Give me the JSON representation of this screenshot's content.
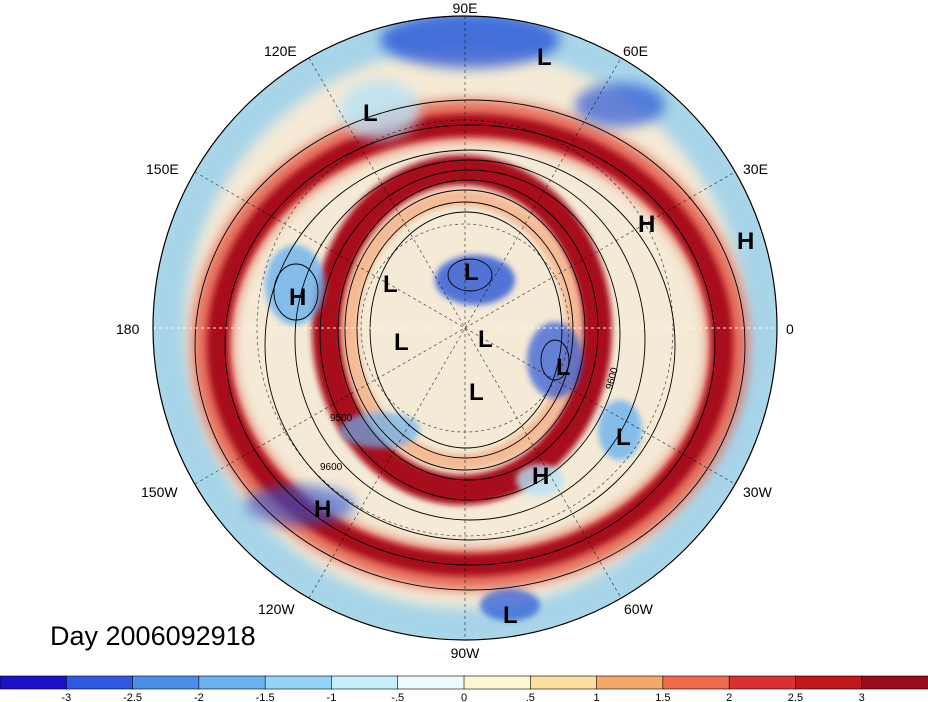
{
  "title": "Day 2006092918",
  "lon_labels": {
    "e90": "90E",
    "e60": "60E",
    "e120": "120E",
    "e150": "150E",
    "e30": "30E",
    "zero": "0",
    "w180": "180",
    "w150": "150W",
    "w30": "30W",
    "w120": "120W",
    "w60": "60W",
    "w90": "90W"
  },
  "pressure_labels": [
    "L",
    "L",
    "L",
    "L",
    "L",
    "L",
    "L",
    "L",
    "L",
    "L",
    "H",
    "H",
    "H",
    "H",
    "H"
  ],
  "contour_labels": [
    "9500",
    "9600",
    "9600"
  ],
  "colorbar": {
    "ticks": [
      "-3",
      "-2.5",
      "-2",
      "-1.5",
      "-1",
      "-.5",
      "0",
      ".5",
      "1",
      "1.5",
      "2",
      "2.5",
      "3"
    ],
    "colors": [
      "#1a10c8",
      "#2e58e0",
      "#4a8ee8",
      "#6bb2f0",
      "#94d4f6",
      "#c6eefa",
      "#eef9fd",
      "#fdf6d4",
      "#fadf9e",
      "#f6a86a",
      "#ee6a4a",
      "#dc3030",
      "#c01818",
      "#990a1a"
    ]
  },
  "colors": {
    "ocean_base": "#f4ead6",
    "strong_red": "#a80f1c",
    "mid_red": "#e04a38",
    "light_red": "#f59a6a",
    "blue_strong": "#2a56d6",
    "blue_mid": "#6bb2f0",
    "blue_light": "#b8e2f6"
  }
}
